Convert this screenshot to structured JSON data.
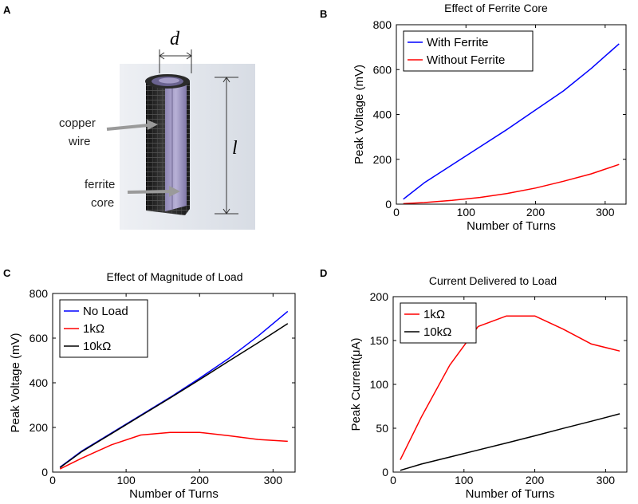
{
  "panel_a": {
    "letter": "A",
    "dim_d": "d",
    "dim_l": "l",
    "label_copper_1": "copper",
    "label_copper_2": "wire",
    "label_ferrite_1": "ferrite",
    "label_ferrite_2": "core"
  },
  "chart_data": [
    {
      "panel": "B",
      "type": "line",
      "title": "Effect of Ferrite Core",
      "xlabel": "Number of Turns",
      "ylabel": "Peak Voltage (mV)",
      "xlim": [
        0,
        330
      ],
      "ylim": [
        0,
        800
      ],
      "xticks": [
        0,
        100,
        200,
        300
      ],
      "yticks": [
        0,
        200,
        400,
        600,
        800
      ],
      "legend_position": "top-left",
      "series": [
        {
          "name": "With Ferrite",
          "color": "#0000ff",
          "x": [
            10,
            40,
            80,
            120,
            160,
            200,
            240,
            280,
            320
          ],
          "y": [
            22,
            95,
            175,
            255,
            335,
            420,
            505,
            605,
            715
          ]
        },
        {
          "name": "Without Ferrite",
          "color": "#ff0000",
          "x": [
            10,
            40,
            80,
            120,
            160,
            200,
            240,
            280,
            320
          ],
          "y": [
            2,
            7,
            17,
            30,
            48,
            72,
            102,
            135,
            177
          ]
        }
      ]
    },
    {
      "panel": "C",
      "type": "line",
      "title": "Effect of Magnitude of Load",
      "xlabel": "Number of Turns",
      "ylabel": "Peak Voltage (mV)",
      "xlim": [
        0,
        330
      ],
      "ylim": [
        0,
        800
      ],
      "xticks": [
        0,
        100,
        200,
        300
      ],
      "yticks": [
        0,
        200,
        400,
        600,
        800
      ],
      "legend_position": "top-left",
      "series": [
        {
          "name": "No Load",
          "color": "#0000ff",
          "x": [
            10,
            40,
            80,
            120,
            160,
            200,
            240,
            280,
            320
          ],
          "y": [
            22,
            95,
            175,
            255,
            335,
            420,
            510,
            610,
            720
          ]
        },
        {
          "name": "1kΩ",
          "color": "#ff0000",
          "x": [
            10,
            40,
            80,
            120,
            160,
            200,
            240,
            280,
            320
          ],
          "y": [
            14,
            63,
            122,
            166,
            178,
            178,
            163,
            146,
            138
          ]
        },
        {
          "name": "10kΩ",
          "color": "#000000",
          "x": [
            10,
            40,
            80,
            120,
            160,
            200,
            240,
            280,
            320
          ],
          "y": [
            20,
            92,
            172,
            252,
            332,
            414,
            498,
            580,
            665
          ]
        }
      ]
    },
    {
      "panel": "D",
      "type": "line",
      "title": "Current Delivered to Load",
      "xlabel": "Number of Turns",
      "ylabel": "Peak Current(μA)",
      "xlim": [
        0,
        330
      ],
      "ylim": [
        0,
        200
      ],
      "xticks": [
        0,
        100,
        200,
        300
      ],
      "yticks": [
        0,
        50,
        100,
        150,
        200
      ],
      "legend_position": "top-left",
      "series": [
        {
          "name": "1kΩ",
          "color": "#ff0000",
          "x": [
            10,
            40,
            80,
            120,
            160,
            200,
            240,
            280,
            320
          ],
          "y": [
            14,
            63,
            122,
            166,
            178,
            178,
            163,
            146,
            138
          ]
        },
        {
          "name": "10kΩ",
          "color": "#000000",
          "x": [
            10,
            40,
            80,
            120,
            160,
            200,
            240,
            280,
            320
          ],
          "y": [
            2,
            9.2,
            17.2,
            25.2,
            33.2,
            41.4,
            49.8,
            58,
            66.5
          ]
        }
      ]
    }
  ]
}
